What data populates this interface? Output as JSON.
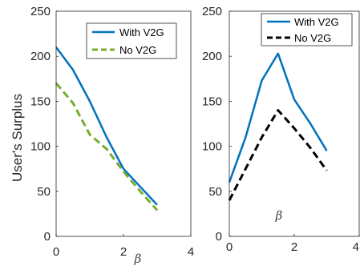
{
  "chart_data": [
    {
      "type": "line",
      "ylabel": "User's Surplus",
      "xlabel": "β",
      "xlim": [
        0,
        4
      ],
      "ylim": [
        0,
        250
      ],
      "xticks": [
        0,
        2,
        4
      ],
      "yticks": [
        0,
        50,
        100,
        150,
        200,
        250
      ],
      "legend_position": "top-right",
      "grid": false,
      "series": [
        {
          "name": "With V2G",
          "color": "#0072BD",
          "dash": "solid",
          "x": [
            0,
            0.5,
            1,
            1.5,
            2,
            2.5,
            3
          ],
          "y": [
            210,
            185,
            150,
            110,
            75,
            55,
            35
          ]
        },
        {
          "name": "No V2G",
          "color": "#77AC30",
          "dash": "dashed",
          "x": [
            0,
            0.5,
            1,
            1.5,
            2,
            2.5,
            3
          ],
          "y": [
            170,
            148,
            113,
            97,
            72,
            50,
            29
          ]
        }
      ]
    },
    {
      "type": "line",
      "ylabel": "",
      "xlabel": "β",
      "xlim": [
        0,
        4
      ],
      "ylim": [
        0,
        250
      ],
      "xticks": [
        0,
        2,
        4
      ],
      "yticks": [
        0,
        50,
        100,
        150,
        200,
        250
      ],
      "legend_position": "top-right",
      "grid": false,
      "series": [
        {
          "name": "With V2G",
          "color": "#0072BD",
          "dash": "solid",
          "x": [
            0,
            0.5,
            1,
            1.5,
            2,
            2.5,
            3
          ],
          "y": [
            60,
            110,
            173,
            203,
            152,
            125,
            95
          ]
        },
        {
          "name": "No V2G",
          "color": "#000000",
          "dash": "dashed",
          "x": [
            0,
            0.5,
            1,
            1.5,
            2,
            2.5,
            3
          ],
          "y": [
            40,
            75,
            110,
            140,
            120,
            98,
            73
          ]
        }
      ]
    }
  ]
}
